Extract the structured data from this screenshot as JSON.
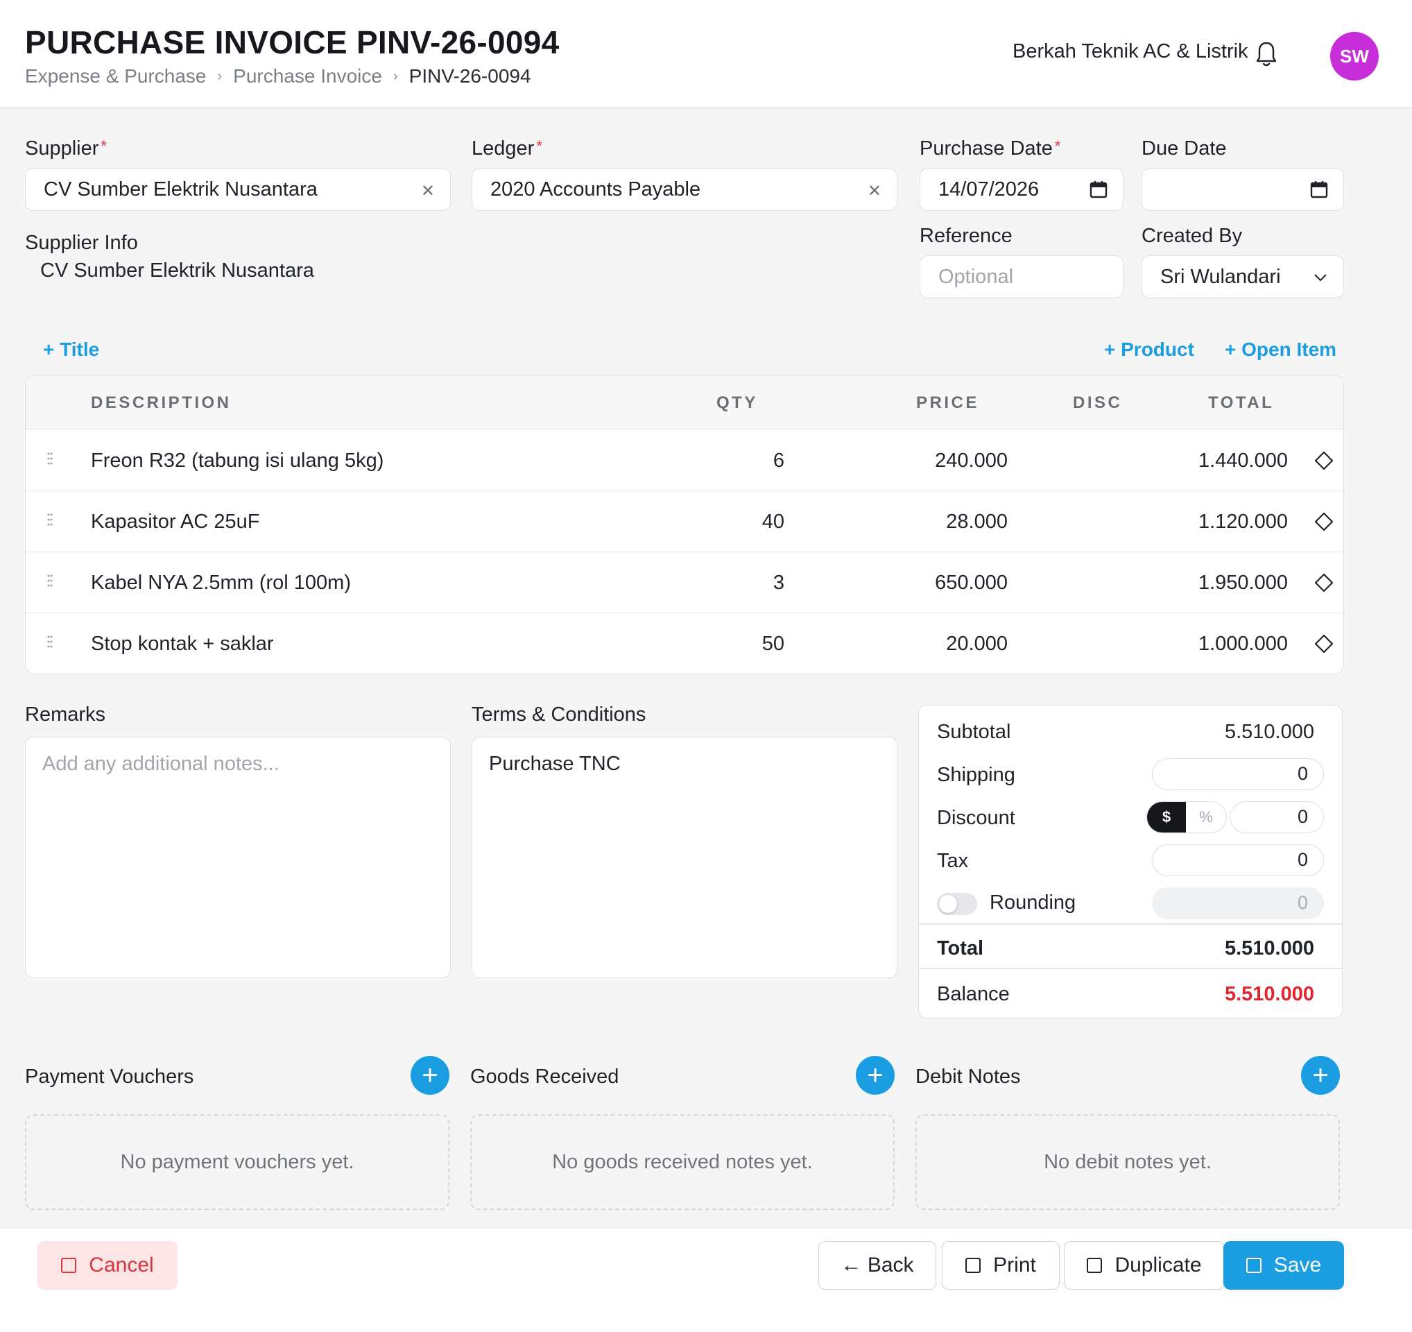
{
  "header": {
    "title": "PURCHASE INVOICE PINV-26-0094",
    "breadcrumb": [
      "Expense & Purchase",
      "Purchase Invoice",
      "PINV-26-0094"
    ],
    "company": "Berkah Teknik AC & Listrik",
    "avatar_initials": "SW",
    "avatar_color": "#c72ed9"
  },
  "form": {
    "supplier": {
      "label": "Supplier",
      "value": "CV Sumber Elektrik Nusantara"
    },
    "ledger": {
      "label": "Ledger",
      "value": "2020 Accounts Payable"
    },
    "purchase_date": {
      "label": "Purchase Date",
      "value": "14/07/2026"
    },
    "due_date": {
      "label": "Due Date",
      "value": ""
    },
    "supplier_info": {
      "label": "Supplier Info",
      "value": "CV Sumber Elektrik Nusantara"
    },
    "reference": {
      "label": "Reference",
      "placeholder": "Optional"
    },
    "created_by": {
      "label": "Created By",
      "value": "Sri Wulandari"
    }
  },
  "actions": {
    "add_title": "+ Title",
    "add_product": "+ Product",
    "add_open_item": "+ Open Item"
  },
  "table": {
    "columns": [
      "DESCRIPTION",
      "QTY",
      "PRICE",
      "DISC",
      "TOTAL"
    ],
    "rows": [
      {
        "description": "Freon R32 (tabung isi ulang 5kg)",
        "qty": "6",
        "price": "240.000",
        "disc": "",
        "total": "1.440.000"
      },
      {
        "description": "Kapasitor AC 25uF",
        "qty": "40",
        "price": "28.000",
        "disc": "",
        "total": "1.120.000"
      },
      {
        "description": "Kabel NYA 2.5mm (rol 100m)",
        "qty": "3",
        "price": "650.000",
        "disc": "",
        "total": "1.950.000"
      },
      {
        "description": "Stop kontak + saklar",
        "qty": "50",
        "price": "20.000",
        "disc": "",
        "total": "1.000.000"
      }
    ]
  },
  "remarks": {
    "label": "Remarks",
    "placeholder": "Add any additional notes..."
  },
  "terms": {
    "label": "Terms & Conditions",
    "value": "Purchase TNC"
  },
  "summary": {
    "subtotal_label": "Subtotal",
    "subtotal": "5.510.000",
    "shipping_label": "Shipping",
    "shipping": "0",
    "discount_label": "Discount",
    "discount": "0",
    "discount_mode_amount": "$",
    "discount_mode_percent": "%",
    "tax_label": "Tax",
    "tax": "0",
    "rounding_label": "Rounding",
    "rounding": "0",
    "total_label": "Total",
    "total": "5.510.000",
    "balance_label": "Balance",
    "balance": "5.510.000",
    "balance_color": "#e0262f"
  },
  "sections": {
    "payment_vouchers": {
      "title": "Payment Vouchers",
      "empty": "No payment vouchers yet."
    },
    "goods_received": {
      "title": "Goods Received",
      "empty": "No goods received notes yet."
    },
    "debit_notes": {
      "title": "Debit Notes",
      "empty": "No debit notes yet."
    }
  },
  "footer": {
    "cancel": "Cancel",
    "back": "← Back",
    "print": "Print",
    "duplicate": "Duplicate",
    "save": "Save"
  },
  "colors": {
    "accent": "#1a9de1",
    "danger": "#d9363e"
  }
}
